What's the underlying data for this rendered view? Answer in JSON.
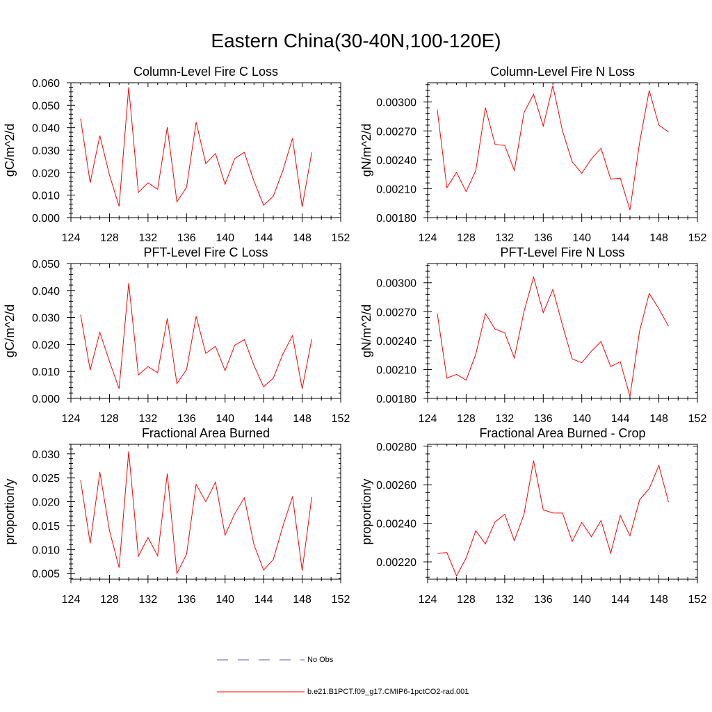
{
  "title": "Eastern China(30-40N,100-120E)",
  "colors": {
    "series": "#ff0000",
    "obs": "#5a5aa8",
    "axis": "#000000"
  },
  "legend": [
    {
      "label": "No Obs",
      "style": "dashed",
      "color": "#5a5aa8"
    },
    {
      "label": "b.e21.B1PCT.f09_g17.CMIP6-1pctCO2-rad.001",
      "style": "solid",
      "color": "#ff0000"
    }
  ],
  "chart_data": [
    {
      "type": "line",
      "title": "Column-Level Fire C Loss",
      "ylabel": "gC/m^2/d",
      "xlim": [
        124,
        152
      ],
      "ylim": [
        0.0,
        0.06
      ],
      "xticks": [
        "124",
        "128",
        "132",
        "136",
        "140",
        "144",
        "148",
        "152"
      ],
      "yticks": [
        "0.000",
        "0.010",
        "0.020",
        "0.030",
        "0.040",
        "0.050",
        "0.060"
      ],
      "x": [
        125,
        126,
        127,
        128,
        129,
        130,
        131,
        132,
        133,
        134,
        135,
        136,
        137,
        138,
        139,
        140,
        141,
        142,
        143,
        144,
        145,
        146,
        147,
        148,
        149
      ],
      "series": [
        {
          "values": [
            0.044,
            0.0155,
            0.0365,
            0.019,
            0.005,
            0.058,
            0.0112,
            0.0155,
            0.0126,
            0.0402,
            0.007,
            0.0135,
            0.0425,
            0.024,
            0.0285,
            0.0148,
            0.0263,
            0.029,
            0.0162,
            0.0055,
            0.0095,
            0.021,
            0.0353,
            0.0048,
            0.029
          ]
        }
      ]
    },
    {
      "type": "line",
      "title": "Column-Level Fire N Loss",
      "ylabel": "gN/m^2/d",
      "xlim": [
        124,
        152
      ],
      "ylim": [
        0.0018,
        0.0032
      ],
      "xticks": [
        "124",
        "128",
        "132",
        "136",
        "140",
        "144",
        "148",
        "152"
      ],
      "yticks": [
        "0.00180",
        "0.00210",
        "0.00240",
        "0.00270",
        "0.00300"
      ],
      "x": [
        125,
        126,
        127,
        128,
        129,
        130,
        131,
        132,
        133,
        134,
        135,
        136,
        137,
        138,
        139,
        140,
        141,
        142,
        143,
        144,
        145,
        146,
        147,
        148,
        149
      ],
      "series": [
        {
          "values": [
            0.00292,
            0.00211,
            0.00227,
            0.00207,
            0.00229,
            0.00294,
            0.00256,
            0.00255,
            0.00229,
            0.00289,
            0.00308,
            0.00275,
            0.00317,
            0.0027,
            0.00238,
            0.00226,
            0.00241,
            0.00252,
            0.0022,
            0.00221,
            0.00188,
            0.00258,
            0.00312,
            0.00276,
            0.00269
          ]
        }
      ]
    },
    {
      "type": "line",
      "title": "PFT-Level Fire C Loss",
      "ylabel": "gC/m^2/d",
      "xlim": [
        124,
        152
      ],
      "ylim": [
        0.0,
        0.05
      ],
      "xticks": [
        "124",
        "128",
        "132",
        "136",
        "140",
        "144",
        "148",
        "152"
      ],
      "yticks": [
        "0.000",
        "0.010",
        "0.020",
        "0.030",
        "0.040",
        "0.050"
      ],
      "x": [
        125,
        126,
        127,
        128,
        129,
        130,
        131,
        132,
        133,
        134,
        135,
        136,
        137,
        138,
        139,
        140,
        141,
        142,
        143,
        144,
        145,
        146,
        147,
        148,
        149
      ],
      "series": [
        {
          "values": [
            0.031,
            0.0105,
            0.0245,
            0.0137,
            0.0036,
            0.0427,
            0.0087,
            0.0118,
            0.0095,
            0.0297,
            0.0055,
            0.0107,
            0.0304,
            0.0167,
            0.0193,
            0.0103,
            0.0197,
            0.0218,
            0.0122,
            0.0043,
            0.0075,
            0.0165,
            0.0233,
            0.0036,
            0.022
          ]
        }
      ]
    },
    {
      "type": "line",
      "title": "PFT-Level Fire N Loss",
      "ylabel": "gN/m^2/d",
      "xlim": [
        124,
        152
      ],
      "ylim": [
        0.0018,
        0.0032
      ],
      "xticks": [
        "124",
        "128",
        "132",
        "136",
        "140",
        "144",
        "148",
        "152"
      ],
      "yticks": [
        "0.00180",
        "0.00210",
        "0.00240",
        "0.00270",
        "0.00300"
      ],
      "x": [
        125,
        126,
        127,
        128,
        129,
        130,
        131,
        132,
        133,
        134,
        135,
        136,
        137,
        138,
        139,
        140,
        141,
        142,
        143,
        144,
        145,
        146,
        147,
        148,
        149
      ],
      "series": [
        {
          "values": [
            0.00268,
            0.00201,
            0.00205,
            0.00199,
            0.00226,
            0.00268,
            0.00252,
            0.00248,
            0.00222,
            0.0027,
            0.00306,
            0.00269,
            0.00293,
            0.00256,
            0.00221,
            0.00217,
            0.00229,
            0.00239,
            0.00213,
            0.00218,
            0.00182,
            0.0025,
            0.00289,
            0.00273,
            0.00255
          ]
        }
      ]
    },
    {
      "type": "line",
      "title": "Fractional Area Burned",
      "ylabel": "proportion/y",
      "xlim": [
        124,
        152
      ],
      "ylim": [
        0.0038,
        0.032
      ],
      "xticks": [
        "124",
        "128",
        "132",
        "136",
        "140",
        "144",
        "148",
        "152"
      ],
      "yticks": [
        "0.005",
        "0.010",
        "0.015",
        "0.020",
        "0.025",
        "0.030"
      ],
      "x": [
        125,
        126,
        127,
        128,
        129,
        130,
        131,
        132,
        133,
        134,
        135,
        136,
        137,
        138,
        139,
        140,
        141,
        142,
        143,
        144,
        145,
        146,
        147,
        148,
        149
      ],
      "series": [
        {
          "values": [
            0.0245,
            0.0113,
            0.0262,
            0.014,
            0.0062,
            0.0305,
            0.0086,
            0.0125,
            0.0087,
            0.0259,
            0.005,
            0.009,
            0.0236,
            0.02,
            0.0241,
            0.013,
            0.0175,
            0.0208,
            0.011,
            0.0057,
            0.0079,
            0.0149,
            0.0211,
            0.0056,
            0.021
          ]
        }
      ]
    },
    {
      "type": "line",
      "title": "Fractional Area Burned - Crop",
      "ylabel": "proportion/y",
      "xlim": [
        124,
        152
      ],
      "ylim": [
        0.00211,
        0.00281
      ],
      "xticks": [
        "124",
        "128",
        "132",
        "136",
        "140",
        "144",
        "148",
        "152"
      ],
      "yticks": [
        "0.00220",
        "0.00240",
        "0.00260",
        "0.00280"
      ],
      "x": [
        125,
        126,
        127,
        128,
        129,
        130,
        131,
        132,
        133,
        134,
        135,
        136,
        137,
        138,
        139,
        140,
        141,
        142,
        143,
        144,
        145,
        146,
        147,
        148,
        149
      ],
      "series": [
        {
          "values": [
            0.002245,
            0.002248,
            0.002127,
            0.00222,
            0.002362,
            0.002293,
            0.002407,
            0.002447,
            0.00231,
            0.002446,
            0.002725,
            0.00247,
            0.002454,
            0.002453,
            0.002306,
            0.002405,
            0.00233,
            0.002415,
            0.002245,
            0.00244,
            0.002335,
            0.002522,
            0.00258,
            0.0027,
            0.00251
          ]
        }
      ]
    }
  ]
}
